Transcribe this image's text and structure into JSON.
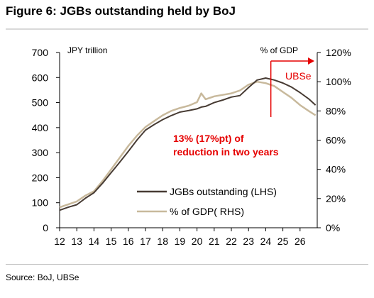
{
  "figure": {
    "title": "Figure 6: JGBs outstanding held by BoJ",
    "source": "Source: BoJ, UBSe"
  },
  "colors": {
    "lhs_series": "#473b33",
    "rhs_series": "#c8b99c",
    "annotation": "#e60000"
  },
  "chart_data": {
    "type": "line",
    "title": "",
    "left_axis_label": "JPY trillion",
    "right_axis_label": "% of GDP",
    "left_ylim": [
      0,
      700
    ],
    "right_ylim": [
      0,
      120
    ],
    "left_ticks": [
      0,
      100,
      200,
      300,
      400,
      500,
      600,
      700
    ],
    "right_ticks": [
      {
        "value": 0,
        "label": "0%"
      },
      {
        "value": 20,
        "label": "20%"
      },
      {
        "value": 40,
        "label": "40%"
      },
      {
        "value": 60,
        "label": "60%"
      },
      {
        "value": 80,
        "label": "80%"
      },
      {
        "value": 100,
        "label": "100%"
      },
      {
        "value": 120,
        "label": "120%"
      }
    ],
    "xlim": [
      12,
      27
    ],
    "x_ticks": [
      12,
      13,
      14,
      15,
      16,
      17,
      18,
      19,
      20,
      21,
      22,
      23,
      24,
      25,
      26
    ],
    "grid": false,
    "legend_placement": "bottom-center",
    "series": [
      {
        "name": "JGBs outstanding (LHS)",
        "axis": "left",
        "x": [
          12,
          12.5,
          13,
          13.5,
          14,
          14.5,
          15,
          15.5,
          16,
          16.5,
          17,
          17.5,
          18,
          18.5,
          19,
          19.5,
          20,
          20.25,
          20.5,
          21,
          21.5,
          22,
          22.5,
          23,
          23.5,
          24,
          24.5,
          25,
          25.5,
          26,
          26.5,
          26.9
        ],
        "values": [
          70,
          82,
          92,
          118,
          140,
          178,
          220,
          262,
          305,
          350,
          390,
          412,
          432,
          448,
          462,
          468,
          475,
          482,
          485,
          500,
          510,
          522,
          528,
          560,
          590,
          598,
          590,
          578,
          562,
          540,
          515,
          490
        ]
      },
      {
        "name": "% of GDP( RHS)",
        "axis": "right",
        "x": [
          12,
          12.5,
          13,
          13.5,
          14,
          14.5,
          15,
          15.5,
          16,
          16.5,
          17,
          17.5,
          18,
          18.5,
          19,
          19.5,
          20,
          20.25,
          20.5,
          21,
          21.5,
          22,
          22.5,
          23,
          23.5,
          24,
          24.5,
          25,
          25.5,
          26,
          26.5,
          26.9
        ],
        "values": [
          14,
          16,
          18,
          22,
          25,
          32,
          40,
          48,
          56,
          63,
          69,
          73,
          77,
          80,
          82,
          83.5,
          86,
          92,
          88,
          90,
          91,
          92,
          94,
          98,
          100,
          99,
          97,
          93,
          89,
          84,
          80,
          77
        ]
      }
    ],
    "annotations": [
      {
        "text_line1": "13% (17%pt) of",
        "text_line2": "reduction in two years",
        "at_x": 21.3
      },
      {
        "text": "UBSe",
        "at_x": 24.3
      }
    ]
  }
}
